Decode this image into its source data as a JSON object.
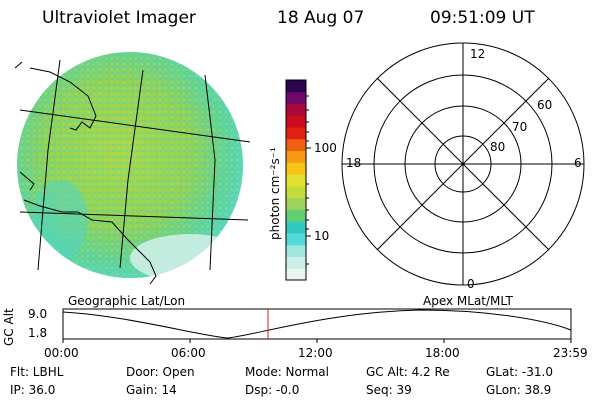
{
  "header": {
    "instrument": "Ultraviolet Imager",
    "date": "18 Aug 07",
    "time": "09:51:09 UT"
  },
  "colorbar": {
    "unit_label": "photon cm⁻²s⁻¹",
    "ticks": [
      "100",
      "10"
    ],
    "colors": [
      "#e8f4f0",
      "#cdeee6",
      "#9fe6de",
      "#55d8d8",
      "#32c9c3",
      "#62cf73",
      "#9ed45b",
      "#c4dd3c",
      "#e4e032",
      "#f4c417",
      "#f59a12",
      "#f06012",
      "#e02010",
      "#cc0c1c",
      "#aa0a3a",
      "#72086a",
      "#2a0650"
    ]
  },
  "polar_plot": {
    "label_top": "12",
    "label_bottom": "0",
    "label_left": "18",
    "label_right": "6",
    "ring_labels": [
      "60",
      "70",
      "80"
    ]
  },
  "timeline": {
    "left_caption": "Geographic Lat/Lon",
    "right_caption": "Apex MLat/MLT",
    "y_axis_title": "GC Alt",
    "y_top": "9.0",
    "y_bottom": "1.8",
    "x_ticks": [
      "00:00",
      "06:00",
      "12:00",
      "18:00",
      "23:59"
    ],
    "marker_color": "#d02020"
  },
  "status": {
    "row1": [
      {
        "key": "flt",
        "text": "Flt: LBHL"
      },
      {
        "key": "door",
        "text": "Door: Open"
      },
      {
        "key": "mode",
        "text": "Mode: Normal"
      },
      {
        "key": "gcalt",
        "text": "GC Alt: 4.2 Re"
      },
      {
        "key": "glat",
        "text": "GLat: -31.0"
      }
    ],
    "row2": [
      {
        "key": "ip",
        "text": "IP: 36.0"
      },
      {
        "key": "gain",
        "text": "Gain: 14"
      },
      {
        "key": "dsp",
        "text": "Dsp:    -0.0"
      },
      {
        "key": "seq",
        "text": "Seq: 39"
      },
      {
        "key": "glon",
        "text": "GLon:  38.9"
      }
    ]
  }
}
